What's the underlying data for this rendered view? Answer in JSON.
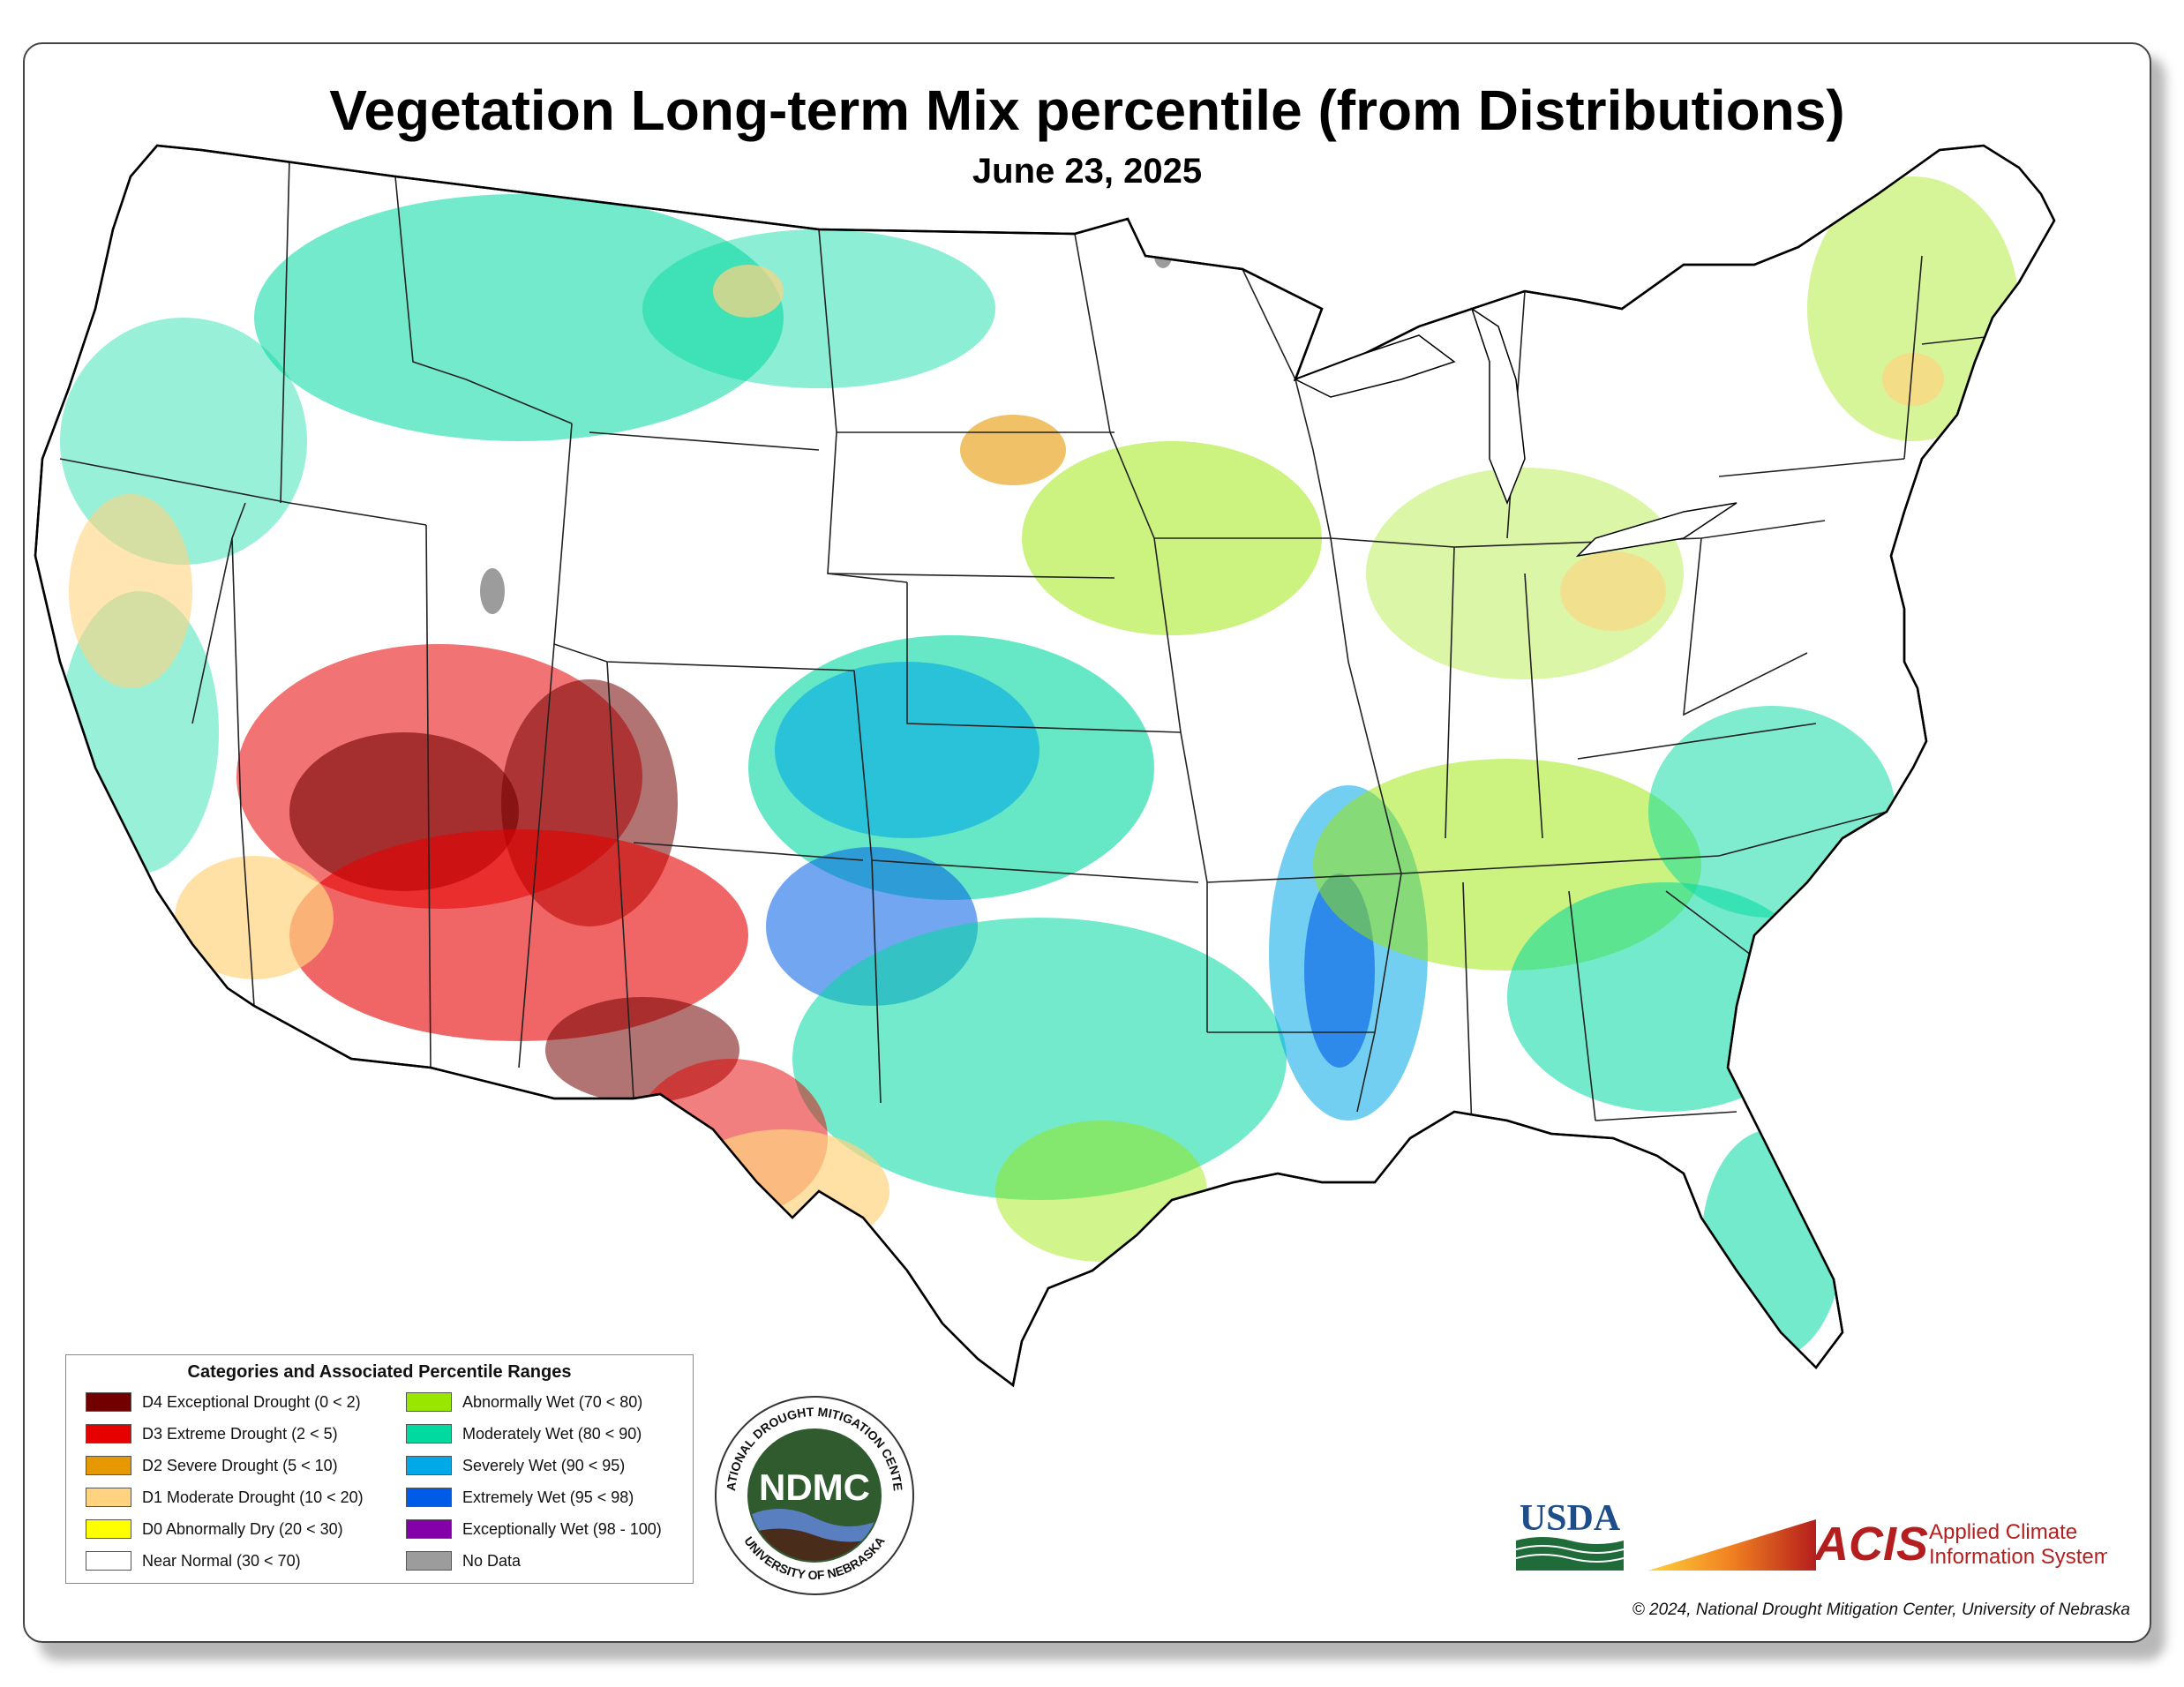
{
  "title": "Vegetation Long-term Mix percentile (from Distributions)",
  "date": "June 23, 2025",
  "legend": {
    "title": "Categories and Associated Percentile Ranges",
    "items": [
      {
        "label": "D4 Exceptional Drought (0 < 2)",
        "color": "#730000"
      },
      {
        "label": "D3 Extreme Drought (2 < 5)",
        "color": "#e60000"
      },
      {
        "label": "D2 Severe Drought (5 < 10)",
        "color": "#e69800"
      },
      {
        "label": "D1 Moderate Drought (10 < 20)",
        "color": "#ffd37f"
      },
      {
        "label": "D0 Abnormally Dry (20 < 30)",
        "color": "#ffff00"
      },
      {
        "label": "Near Normal (30 < 70)",
        "color": "#ffffff"
      },
      {
        "label": "Abnormally Wet (70 < 80)",
        "color": "#99e600"
      },
      {
        "label": "Moderately Wet (80 < 90)",
        "color": "#00d9a0"
      },
      {
        "label": "Severely Wet (90 < 95)",
        "color": "#00a8e6"
      },
      {
        "label": "Extremely Wet (95 < 98)",
        "color": "#005ce6"
      },
      {
        "label": "Exceptionally Wet (98 - 100)",
        "color": "#8400a8"
      },
      {
        "label": "No Data",
        "color": "#9c9c9c"
      }
    ]
  },
  "logos": {
    "ndmc_ring_top": "NATIONAL DROUGHT MITIGATION CENTER",
    "ndmc_ring_bottom": "UNIVERSITY OF NEBRASKA",
    "ndmc_center": "NDMC",
    "usda": "USDA",
    "acis": "ACIS",
    "acis_line1": "Applied Climate",
    "acis_line2": "Information System"
  },
  "copyright": "© 2024, National Drought Mitigation Center, University of Nebraska"
}
